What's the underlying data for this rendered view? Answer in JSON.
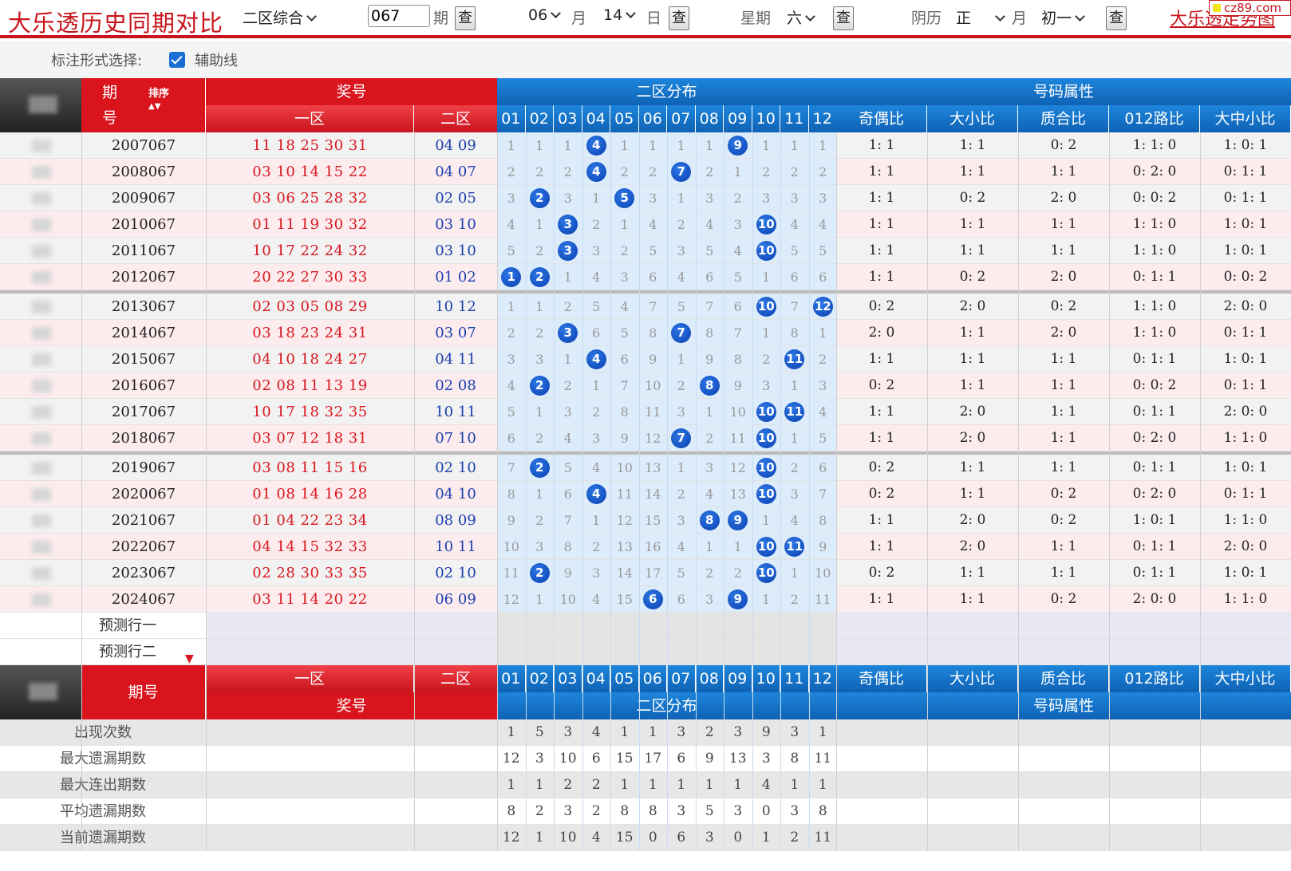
{
  "header": {
    "title": "大乐透历史同期对比",
    "mode_select": "二区综合",
    "issue_value": "067",
    "issue_label": "期",
    "query_label": "查",
    "month_value": "06",
    "month_label": "月",
    "day_value": "14",
    "day_label": "日",
    "weekday_label": "星期",
    "weekday_value": "六",
    "lunar_label": "阴历",
    "lunar_month_value": "正",
    "lunar_month_label": "月",
    "lunar_day_value": "初一",
    "trend_link": "大乐透走势图",
    "site_badge": "cz89.com"
  },
  "options": {
    "label": "标注形式选择:",
    "aux_line_label": "辅助线",
    "aux_line_checked": true
  },
  "table_header": {
    "issue": "期号",
    "issue_char1": "期",
    "issue_char2": "号",
    "sort_label": "排序",
    "prize_numbers": "奖号",
    "zone1": "一区",
    "zone2": "二区",
    "zone2_distribution": "二区分布",
    "attributes": "号码属性",
    "ball_columns": [
      "01",
      "02",
      "03",
      "04",
      "05",
      "06",
      "07",
      "08",
      "09",
      "10",
      "11",
      "12"
    ],
    "attr_columns": [
      "奇偶比",
      "大小比",
      "质合比",
      "012路比",
      "大中小比"
    ]
  },
  "rows": [
    {
      "issue": "2007067",
      "zone1": "11 18 25 30 31",
      "zone2": "04 09",
      "dist": [
        1,
        1,
        1,
        "4",
        1,
        1,
        1,
        1,
        "9",
        1,
        1,
        1
      ],
      "attrs": [
        "1: 1",
        "1: 1",
        "0: 2",
        "1: 1: 0",
        "1: 0: 1"
      ]
    },
    {
      "issue": "2008067",
      "zone1": "03 10 14 15 22",
      "zone2": "04 07",
      "dist": [
        2,
        2,
        2,
        "4",
        2,
        2,
        "7",
        2,
        1,
        2,
        2,
        2
      ],
      "attrs": [
        "1: 1",
        "1: 1",
        "1: 1",
        "0: 2: 0",
        "0: 1: 1"
      ]
    },
    {
      "issue": "2009067",
      "zone1": "03 06 25 28 32",
      "zone2": "02 05",
      "dist": [
        3,
        "2",
        3,
        1,
        "5",
        3,
        1,
        3,
        2,
        3,
        3,
        3
      ],
      "attrs": [
        "1: 1",
        "0: 2",
        "2: 0",
        "0: 0: 2",
        "0: 1: 1"
      ]
    },
    {
      "issue": "2010067",
      "zone1": "01 11 19 30 32",
      "zone2": "03 10",
      "dist": [
        4,
        1,
        "3",
        2,
        1,
        4,
        2,
        4,
        3,
        "10",
        4,
        4
      ],
      "attrs": [
        "1: 1",
        "1: 1",
        "1: 1",
        "1: 1: 0",
        "1: 0: 1"
      ]
    },
    {
      "issue": "2011067",
      "zone1": "10 17 22 24 32",
      "zone2": "03 10",
      "dist": [
        5,
        2,
        "3",
        3,
        2,
        5,
        3,
        5,
        4,
        "10",
        5,
        5
      ],
      "attrs": [
        "1: 1",
        "1: 1",
        "1: 1",
        "1: 1: 0",
        "1: 0: 1"
      ]
    },
    {
      "issue": "2012067",
      "zone1": "20 22 27 30 33",
      "zone2": "01 02",
      "dist": [
        "1",
        "2",
        1,
        4,
        3,
        6,
        4,
        6,
        5,
        1,
        6,
        6
      ],
      "attrs": [
        "1: 1",
        "0: 2",
        "2: 0",
        "0: 1: 1",
        "0: 0: 2"
      ]
    },
    {
      "issue": "2013067",
      "zone1": "02 03 05 08 29",
      "zone2": "10 12",
      "dist": [
        1,
        1,
        2,
        5,
        4,
        7,
        5,
        7,
        6,
        "10",
        7,
        "12"
      ],
      "attrs": [
        "0: 2",
        "2: 0",
        "0: 2",
        "1: 1: 0",
        "2: 0: 0"
      ]
    },
    {
      "issue": "2014067",
      "zone1": "03 18 23 24 31",
      "zone2": "03 07",
      "dist": [
        2,
        2,
        "3",
        6,
        5,
        8,
        "7",
        8,
        7,
        1,
        8,
        1
      ],
      "attrs": [
        "2: 0",
        "1: 1",
        "2: 0",
        "1: 1: 0",
        "0: 1: 1"
      ]
    },
    {
      "issue": "2015067",
      "zone1": "04 10 18 24 27",
      "zone2": "04 11",
      "dist": [
        3,
        3,
        1,
        "4",
        6,
        9,
        1,
        9,
        8,
        2,
        "11",
        2
      ],
      "attrs": [
        "1: 1",
        "1: 1",
        "1: 1",
        "0: 1: 1",
        "1: 0: 1"
      ]
    },
    {
      "issue": "2016067",
      "zone1": "02 08 11 13 19",
      "zone2": "02 08",
      "dist": [
        4,
        "2",
        2,
        1,
        7,
        10,
        2,
        "8",
        9,
        3,
        1,
        3
      ],
      "attrs": [
        "0: 2",
        "1: 1",
        "1: 1",
        "0: 0: 2",
        "0: 1: 1"
      ]
    },
    {
      "issue": "2017067",
      "zone1": "10 17 18 32 35",
      "zone2": "10 11",
      "dist": [
        5,
        1,
        3,
        2,
        8,
        11,
        3,
        1,
        10,
        "10",
        "11",
        4
      ],
      "attrs": [
        "1: 1",
        "2: 0",
        "1: 1",
        "0: 1: 1",
        "2: 0: 0"
      ]
    },
    {
      "issue": "2018067",
      "zone1": "03 07 12 18 31",
      "zone2": "07 10",
      "dist": [
        6,
        2,
        4,
        3,
        9,
        12,
        "7",
        2,
        11,
        "10",
        1,
        5
      ],
      "attrs": [
        "1: 1",
        "2: 0",
        "1: 1",
        "0: 2: 0",
        "1: 1: 0"
      ]
    },
    {
      "issue": "2019067",
      "zone1": "03 08 11 15 16",
      "zone2": "02 10",
      "dist": [
        7,
        "2",
        5,
        4,
        10,
        13,
        1,
        3,
        12,
        "10",
        2,
        6
      ],
      "attrs": [
        "0: 2",
        "1: 1",
        "1: 1",
        "0: 1: 1",
        "1: 0: 1"
      ]
    },
    {
      "issue": "2020067",
      "zone1": "01 08 14 16 28",
      "zone2": "04 10",
      "dist": [
        8,
        1,
        6,
        "4",
        11,
        14,
        2,
        4,
        13,
        "10",
        3,
        7
      ],
      "attrs": [
        "0: 2",
        "1: 1",
        "0: 2",
        "0: 2: 0",
        "0: 1: 1"
      ]
    },
    {
      "issue": "2021067",
      "zone1": "01 04 22 23 34",
      "zone2": "08 09",
      "dist": [
        9,
        2,
        7,
        1,
        12,
        15,
        3,
        "8",
        "9",
        1,
        4,
        8
      ],
      "attrs": [
        "1: 1",
        "2: 0",
        "0: 2",
        "1: 0: 1",
        "1: 1: 0"
      ]
    },
    {
      "issue": "2022067",
      "zone1": "04 14 15 32 33",
      "zone2": "10 11",
      "dist": [
        10,
        3,
        8,
        2,
        13,
        16,
        4,
        1,
        1,
        "10",
        "11",
        9
      ],
      "attrs": [
        "1: 1",
        "2: 0",
        "1: 1",
        "0: 1: 1",
        "2: 0: 0"
      ]
    },
    {
      "issue": "2023067",
      "zone1": "02 28 30 33 35",
      "zone2": "02 10",
      "dist": [
        11,
        "2",
        9,
        3,
        14,
        17,
        5,
        2,
        2,
        "10",
        1,
        10
      ],
      "attrs": [
        "0: 2",
        "1: 1",
        "1: 1",
        "0: 1: 1",
        "1: 0: 1"
      ]
    },
    {
      "issue": "2024067",
      "zone1": "03 11 14 20 22",
      "zone2": "06 09",
      "dist": [
        12,
        1,
        10,
        4,
        15,
        "6",
        6,
        3,
        "9",
        1,
        2,
        11
      ],
      "attrs": [
        "1: 1",
        "1: 1",
        "0: 2",
        "2: 0: 0",
        "1: 1: 0"
      ]
    }
  ],
  "prediction_rows": [
    "预测行一",
    "预测行二"
  ],
  "stats": [
    {
      "label": "出现次数",
      "values": [
        1,
        5,
        3,
        4,
        1,
        1,
        3,
        2,
        3,
        9,
        3,
        1
      ]
    },
    {
      "label": "最大遗漏期数",
      "values": [
        12,
        3,
        10,
        6,
        15,
        17,
        6,
        9,
        13,
        3,
        8,
        11
      ]
    },
    {
      "label": "最大连出期数",
      "values": [
        1,
        1,
        2,
        2,
        1,
        1,
        1,
        1,
        1,
        4,
        1,
        1
      ]
    },
    {
      "label": "平均遗漏期数",
      "values": [
        8,
        2,
        3,
        2,
        8,
        8,
        3,
        5,
        3,
        0,
        3,
        8
      ]
    },
    {
      "label": "当前遗漏期数",
      "values": [
        12,
        1,
        10,
        4,
        15,
        0,
        6,
        3,
        0,
        1,
        2,
        11
      ]
    }
  ],
  "colors": {
    "brand_red": "#d9141c",
    "header_blue": "#1479cc",
    "ball_blue": "#0f4fc4",
    "zone1_text": "#d8181f",
    "zone2_text": "#1c3fae",
    "dist_bg": "#dcecfb"
  }
}
